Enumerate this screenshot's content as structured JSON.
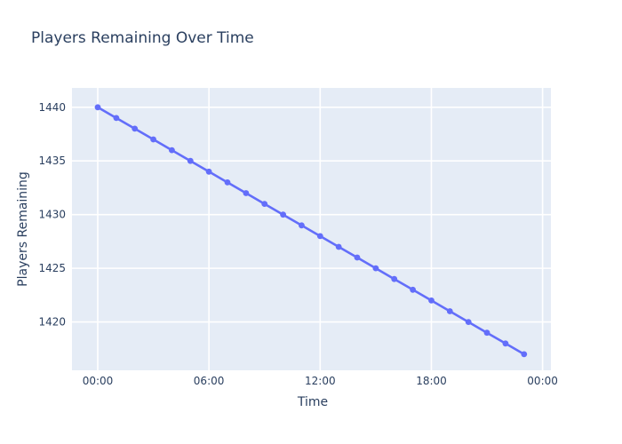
{
  "page": {
    "background_color": "#ffffff"
  },
  "chart_data": {
    "type": "line",
    "title": "Players Remaining Over Time",
    "xlabel": "Time",
    "ylabel": "Players Remaining",
    "x": [
      "00:00",
      "01:00",
      "02:00",
      "03:00",
      "04:00",
      "05:00",
      "06:00",
      "07:00",
      "08:00",
      "09:00",
      "10:00",
      "11:00",
      "12:00",
      "13:00",
      "14:00",
      "15:00",
      "16:00",
      "17:00",
      "18:00",
      "19:00",
      "20:00",
      "21:00",
      "22:00",
      "23:00"
    ],
    "values": [
      1440,
      1439,
      1438,
      1437,
      1436,
      1435,
      1434,
      1433,
      1432,
      1431,
      1430,
      1429,
      1428,
      1427,
      1426,
      1425,
      1424,
      1423,
      1422,
      1421,
      1420,
      1419,
      1418,
      1417
    ],
    "x_ticks": [
      {
        "hour": 0,
        "label": "00:00"
      },
      {
        "hour": 6,
        "label": "06:00"
      },
      {
        "hour": 12,
        "label": "12:00"
      },
      {
        "hour": 18,
        "label": "18:00"
      },
      {
        "hour": 24,
        "label": "00:00"
      }
    ],
    "y_ticks": [
      1420,
      1425,
      1430,
      1435,
      1440
    ],
    "xlim_hours": [
      -1.39,
      24.45
    ],
    "ylim": [
      1415.5,
      1441.8
    ],
    "grid": true,
    "legend_position": "none",
    "markers": true,
    "colors": {
      "line": "#636efa",
      "marker": "#636efa",
      "plot_background": "#e5ecf6",
      "grid": "#ffffff",
      "text": "#2a3f5f",
      "paper_background": "#ffffff"
    }
  }
}
